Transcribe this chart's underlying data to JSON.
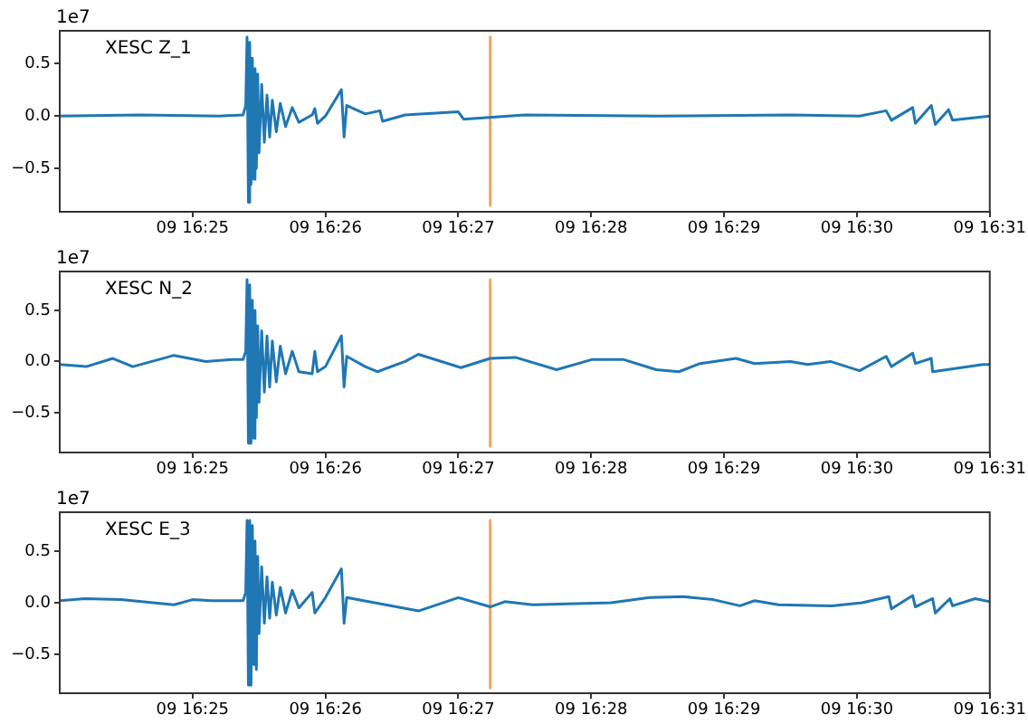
{
  "chart_data": [
    {
      "type": "line",
      "title": "XESC Z_1",
      "annotations": [
        "1e7"
      ],
      "grid": false,
      "legend": false,
      "marker": "none",
      "line_style": "solid",
      "xlim": [
        "--01-09T16:24:00",
        "--01-09T16:31:00"
      ],
      "xticks": [
        {
          "value": "--01-09T16:25:00",
          "label": "09 16:25"
        },
        {
          "value": "--01-09T16:26:00",
          "label": "09 16:26"
        },
        {
          "value": "--01-09T16:27:00",
          "label": "09 16:27"
        },
        {
          "value": "--01-09T16:28:00",
          "label": "09 16:28"
        },
        {
          "value": "--01-09T16:29:00",
          "label": "09 16:29"
        },
        {
          "value": "--01-09T16:30:00",
          "label": "09 16:30"
        },
        {
          "value": "--01-09T16:31:00",
          "label": "09 16:31"
        }
      ],
      "ylim": [
        -0.91,
        0.81
      ],
      "yticks": [
        {
          "value": -0.5,
          "label": "−0.5"
        },
        {
          "value": 0,
          "label": "0.0"
        },
        {
          "value": 0.5,
          "label": "0.5"
        }
      ],
      "series": [
        {
          "color": "#1f77b4",
          "x": [
            "--01-09T16:24:00",
            "--01-09T16:24:36",
            "--01-09T16:25:12",
            "--01-09T16:25:22.8",
            "--01-09T16:25:24",
            "--01-09T16:25:24.6",
            "--01-09T16:25:25.2",
            "--01-09T16:25:25.8",
            "--01-09T16:25:26.4",
            "--01-09T16:25:27",
            "--01-09T16:25:27.6",
            "--01-09T16:25:28.2",
            "--01-09T16:25:28.8",
            "--01-09T16:25:29.4",
            "--01-09T16:25:30",
            "--01-09T16:25:31.2",
            "--01-09T16:25:32.4",
            "--01-09T16:25:33.6",
            "--01-09T16:25:34.8",
            "--01-09T16:25:36",
            "--01-09T16:25:37.8",
            "--01-09T16:25:39.6",
            "--01-09T16:25:42",
            "--01-09T16:25:45",
            "--01-09T16:25:48",
            "--01-09T16:25:54",
            "--01-09T16:25:55.2",
            "--01-09T16:25:56.4",
            "--01-09T16:26:00",
            "--01-09T16:26:07.2",
            "--01-09T16:26:08.4",
            "--01-09T16:26:09.6",
            "--01-09T16:26:18",
            "--01-09T16:26:24.6",
            "--01-09T16:26:25.8",
            "--01-09T16:26:36",
            "--01-09T16:27:00",
            "--01-09T16:27:02.4",
            "--01-09T16:27:30",
            "--01-09T16:28:30",
            "--01-09T16:29:30",
            "--01-09T16:30:01.2",
            "--01-09T16:30:13.2",
            "--01-09T16:30:15.6",
            "--01-09T16:30:25.2",
            "--01-09T16:30:26.4",
            "--01-09T16:30:33.6",
            "--01-09T16:30:35.4",
            "--01-09T16:30:41.4",
            "--01-09T16:30:43.2",
            "--01-09T16:31:00"
          ],
          "values": [
            0.0,
            0.01,
            0.0,
            0.01,
            0.1,
            0.75,
            -0.82,
            0.7,
            -0.65,
            0.55,
            -0.6,
            0.45,
            -0.5,
            0.4,
            -0.35,
            0.3,
            -0.25,
            0.2,
            -0.2,
            0.15,
            -0.15,
            0.12,
            -0.1,
            0.08,
            -0.06,
            0.01,
            0.07,
            -0.07,
            0.0,
            0.25,
            -0.2,
            0.1,
            0.02,
            0.05,
            -0.05,
            0.01,
            0.04,
            -0.03,
            0.01,
            0.0,
            0.01,
            0.0,
            0.05,
            -0.04,
            0.08,
            -0.07,
            0.1,
            -0.08,
            0.06,
            -0.04,
            0.0
          ]
        },
        {
          "color": "#f8a35c",
          "x": [
            "--01-09T16:27:14.4",
            "--01-09T16:27:14.4"
          ],
          "values": [
            -0.85,
            0.75
          ]
        }
      ]
    },
    {
      "type": "line",
      "title": "XESC N_2",
      "annotations": [
        "1e7"
      ],
      "grid": false,
      "legend": false,
      "marker": "none",
      "line_style": "solid",
      "xlim": [
        "--01-09T16:24:00",
        "--01-09T16:31:00"
      ],
      "xticks": [
        {
          "value": "--01-09T16:25:00",
          "label": "09 16:25"
        },
        {
          "value": "--01-09T16:26:00",
          "label": "09 16:26"
        },
        {
          "value": "--01-09T16:27:00",
          "label": "09 16:27"
        },
        {
          "value": "--01-09T16:28:00",
          "label": "09 16:28"
        },
        {
          "value": "--01-09T16:29:00",
          "label": "09 16:29"
        },
        {
          "value": "--01-09T16:30:00",
          "label": "09 16:30"
        },
        {
          "value": "--01-09T16:31:00",
          "label": "09 16:31"
        }
      ],
      "ylim": [
        -0.89,
        0.88
      ],
      "yticks": [
        {
          "value": -0.5,
          "label": "−0.5"
        },
        {
          "value": 0,
          "label": "0.0"
        },
        {
          "value": 0.5,
          "label": "0.5"
        }
      ],
      "series": [
        {
          "color": "#1f77b4",
          "x": [
            "--01-09T16:24:00",
            "--01-09T16:24:12",
            "--01-09T16:24:24",
            "--01-09T16:24:33",
            "--01-09T16:24:45",
            "--01-09T16:24:51.6",
            "--01-09T16:25:06",
            "--01-09T16:25:18",
            "--01-09T16:25:22.8",
            "--01-09T16:25:24",
            "--01-09T16:25:24.6",
            "--01-09T16:25:25.2",
            "--01-09T16:25:25.8",
            "--01-09T16:25:26.4",
            "--01-09T16:25:27",
            "--01-09T16:25:27.6",
            "--01-09T16:25:28.2",
            "--01-09T16:25:28.8",
            "--01-09T16:25:29.4",
            "--01-09T16:25:30",
            "--01-09T16:25:31.2",
            "--01-09T16:25:32.4",
            "--01-09T16:25:33.6",
            "--01-09T16:25:34.8",
            "--01-09T16:25:36",
            "--01-09T16:25:37.8",
            "--01-09T16:25:39.6",
            "--01-09T16:25:42",
            "--01-09T16:25:45",
            "--01-09T16:25:48",
            "--01-09T16:25:54",
            "--01-09T16:25:55.2",
            "--01-09T16:25:56.4",
            "--01-09T16:26:00",
            "--01-09T16:26:07.2",
            "--01-09T16:26:08.4",
            "--01-09T16:26:09.6",
            "--01-09T16:26:18",
            "--01-09T16:26:23.4",
            "--01-09T16:26:36",
            "--01-09T16:26:42",
            "--01-09T16:27:01.2",
            "--01-09T16:27:14.4",
            "--01-09T16:27:25.8",
            "--01-09T16:27:44.4",
            "--01-09T16:28:00.6",
            "--01-09T16:28:14.4",
            "--01-09T16:28:29.4",
            "--01-09T16:28:39.6",
            "--01-09T16:28:49.2",
            "--01-09T16:29:05.4",
            "--01-09T16:29:13.8",
            "--01-09T16:29:30",
            "--01-09T16:29:37.8",
            "--01-09T16:29:48",
            "--01-09T16:30:01.2",
            "--01-09T16:30:13.2",
            "--01-09T16:30:15.6",
            "--01-09T16:30:25.2",
            "--01-09T16:30:26.4",
            "--01-09T16:30:33.6",
            "--01-09T16:30:34.2",
            "--01-09T16:30:57",
            "--01-09T16:31:00"
          ],
          "values": [
            -0.03,
            -0.05,
            0.03,
            -0.05,
            0.02,
            0.06,
            0.0,
            0.02,
            0.02,
            0.1,
            0.8,
            -0.8,
            0.75,
            -0.8,
            0.6,
            -0.75,
            0.5,
            -0.55,
            0.35,
            -0.4,
            0.3,
            -0.3,
            0.25,
            -0.25,
            0.2,
            -0.2,
            0.15,
            -0.12,
            0.1,
            -0.1,
            -0.12,
            0.1,
            -0.1,
            -0.05,
            0.25,
            -0.25,
            0.05,
            -0.05,
            -0.1,
            0.0,
            0.07,
            -0.06,
            0.03,
            0.04,
            -0.08,
            0.02,
            0.02,
            -0.08,
            -0.1,
            -0.02,
            0.03,
            -0.02,
            0.0,
            -0.03,
            0.0,
            -0.09,
            0.05,
            -0.05,
            0.08,
            -0.02,
            0.03,
            -0.1,
            -0.03,
            -0.03
          ]
        },
        {
          "color": "#f8a35c",
          "x": [
            "--01-09T16:27:14.4",
            "--01-09T16:27:14.4"
          ],
          "values": [
            -0.83,
            0.8
          ]
        }
      ]
    },
    {
      "type": "line",
      "title": "XESC E_3",
      "annotations": [
        "1e7"
      ],
      "grid": false,
      "legend": false,
      "marker": "none",
      "line_style": "solid",
      "xlim": [
        "--01-09T16:24:00",
        "--01-09T16:31:00"
      ],
      "xticks": [
        {
          "value": "--01-09T16:25:00",
          "label": "09 16:25"
        },
        {
          "value": "--01-09T16:26:00",
          "label": "09 16:26"
        },
        {
          "value": "--01-09T16:27:00",
          "label": "09 16:27"
        },
        {
          "value": "--01-09T16:28:00",
          "label": "09 16:28"
        },
        {
          "value": "--01-09T16:29:00",
          "label": "09 16:29"
        },
        {
          "value": "--01-09T16:30:00",
          "label": "09 16:30"
        },
        {
          "value": "--01-09T16:31:00",
          "label": "09 16:31"
        }
      ],
      "ylim": [
        -0.88,
        0.88
      ],
      "yticks": [
        {
          "value": -0.5,
          "label": "−0.5"
        },
        {
          "value": 0,
          "label": "0.0"
        },
        {
          "value": 0.5,
          "label": "0.5"
        }
      ],
      "series": [
        {
          "color": "#1f77b4",
          "x": [
            "--01-09T16:24:00",
            "--01-09T16:24:11.4",
            "--01-09T16:24:27.6",
            "--01-09T16:24:51.6",
            "--01-09T16:25:00",
            "--01-09T16:25:08.4",
            "--01-09T16:25:22.8",
            "--01-09T16:25:24",
            "--01-09T16:25:24.6",
            "--01-09T16:25:25.2",
            "--01-09T16:25:25.8",
            "--01-09T16:25:26.4",
            "--01-09T16:25:27",
            "--01-09T16:25:27.6",
            "--01-09T16:25:28.2",
            "--01-09T16:25:28.8",
            "--01-09T16:25:29.4",
            "--01-09T16:25:30",
            "--01-09T16:25:31.2",
            "--01-09T16:25:32.4",
            "--01-09T16:25:33.6",
            "--01-09T16:25:34.8",
            "--01-09T16:25:36",
            "--01-09T16:25:37.8",
            "--01-09T16:25:39.6",
            "--01-09T16:25:42",
            "--01-09T16:25:45",
            "--01-09T16:25:48",
            "--01-09T16:25:54",
            "--01-09T16:25:55.2",
            "--01-09T16:26:00",
            "--01-09T16:26:07.2",
            "--01-09T16:26:08.4",
            "--01-09T16:26:09.6",
            "--01-09T16:26:42",
            "--01-09T16:27:00",
            "--01-09T16:27:14.4",
            "--01-09T16:27:21",
            "--01-09T16:27:33.6",
            "--01-09T16:28:09",
            "--01-09T16:28:26.4",
            "--01-09T16:28:41.4",
            "--01-09T16:28:55.2",
            "--01-09T16:29:07.2",
            "--01-09T16:29:13.8",
            "--01-09T16:29:24.6",
            "--01-09T16:29:48.6",
            "--01-09T16:30:02.4",
            "--01-09T16:30:14.4",
            "--01-09T16:30:15.6",
            "--01-09T16:30:25.2",
            "--01-09T16:30:26.4",
            "--01-09T16:30:34.2",
            "--01-09T16:30:35.4",
            "--01-09T16:30:42",
            "--01-09T16:30:43.2",
            "--01-09T16:30:53.4",
            "--01-09T16:31:00"
          ],
          "values": [
            0.02,
            0.04,
            0.03,
            -0.02,
            0.03,
            0.02,
            0.02,
            0.1,
            0.8,
            -0.8,
            0.8,
            -0.8,
            0.75,
            -0.6,
            0.6,
            -0.65,
            0.45,
            -0.3,
            0.35,
            -0.2,
            0.25,
            -0.15,
            0.2,
            -0.12,
            0.15,
            -0.1,
            0.12,
            -0.05,
            0.1,
            -0.1,
            0.05,
            0.33,
            -0.2,
            0.05,
            -0.08,
            0.05,
            -0.04,
            0.01,
            -0.02,
            0.0,
            0.05,
            0.06,
            0.03,
            -0.03,
            0.02,
            -0.02,
            -0.03,
            0.0,
            0.06,
            -0.06,
            0.07,
            -0.04,
            0.04,
            -0.1,
            0.04,
            -0.03,
            0.04,
            0.01
          ]
        },
        {
          "color": "#f8a35c",
          "x": [
            "--01-09T16:27:14.4",
            "--01-09T16:27:14.4"
          ],
          "values": [
            -0.83,
            0.8
          ]
        }
      ]
    }
  ]
}
